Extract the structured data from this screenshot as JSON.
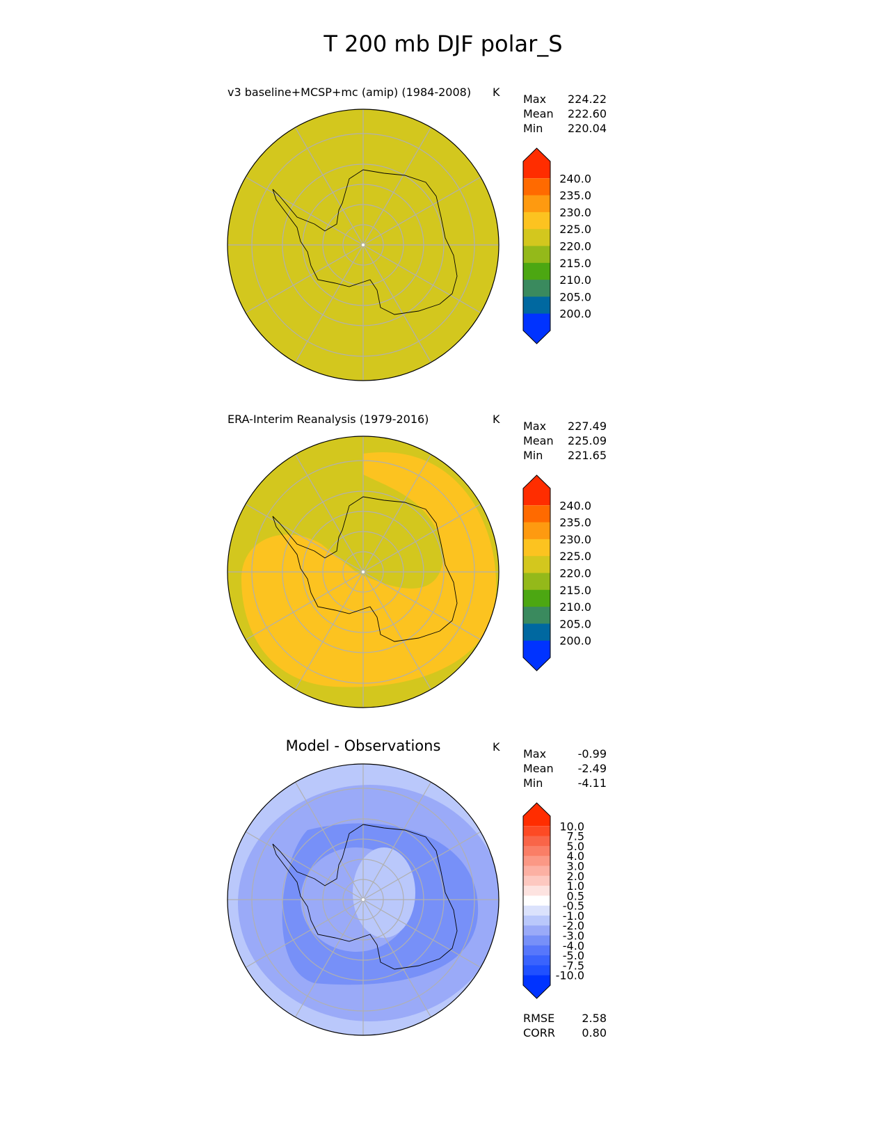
{
  "title": "T 200 mb DJF polar_S",
  "colors": {
    "grid": "#b0b0b0",
    "coast": "#000000"
  },
  "chart_data": [
    {
      "type": "heatmap",
      "projection": "south-polar-stereographic",
      "title": "v3 baseline+MCSP+mc (amip) (1984-2008)",
      "units": "K",
      "stats": [
        {
          "label": "Max",
          "value": "224.22"
        },
        {
          "label": "Mean",
          "value": "222.60"
        },
        {
          "label": "Min",
          "value": "220.04"
        }
      ],
      "colorbar": {
        "levels": [
          "200.0",
          "205.0",
          "210.0",
          "215.0",
          "220.0",
          "225.0",
          "230.0",
          "235.0",
          "240.0"
        ],
        "colors": [
          "#0033ff",
          "#0068a0",
          "#3a8a5e",
          "#4ca712",
          "#94b91a",
          "#d3c71e",
          "#fcc320",
          "#fe9a10",
          "#ff6a00",
          "#ff2d00"
        ]
      },
      "field": {
        "background": "#d3c71e",
        "regions": []
      }
    },
    {
      "type": "heatmap",
      "projection": "south-polar-stereographic",
      "title": "ERA-Interim Reanalysis (1979-2016)",
      "units": "K",
      "stats": [
        {
          "label": "Max",
          "value": "227.49"
        },
        {
          "label": "Mean",
          "value": "225.09"
        },
        {
          "label": "Min",
          "value": "221.65"
        }
      ],
      "colorbar": {
        "levels": [
          "200.0",
          "205.0",
          "210.0",
          "215.0",
          "220.0",
          "225.0",
          "230.0",
          "235.0",
          "240.0"
        ],
        "colors": [
          "#0033ff",
          "#0068a0",
          "#3a8a5e",
          "#4ca712",
          "#94b91a",
          "#d3c71e",
          "#fcc320",
          "#fe9a10",
          "#ff6a00",
          "#ff2d00"
        ]
      },
      "field": {
        "background": "#d3c71e",
        "regions": [
          "225-230 ring surrounding continent"
        ]
      }
    },
    {
      "type": "heatmap",
      "projection": "south-polar-stereographic",
      "title": "Model - Observations",
      "units": "K",
      "stats": [
        {
          "label": "Max",
          "value": "-0.99"
        },
        {
          "label": "Mean",
          "value": "-2.49"
        },
        {
          "label": "Min",
          "value": "-4.11"
        }
      ],
      "metrics": [
        {
          "label": "RMSE",
          "value": "2.58"
        },
        {
          "label": "CORR",
          "value": "0.80"
        }
      ],
      "colorbar": {
        "levels": [
          "-10.0",
          "-7.5",
          "-5.0",
          "-4.0",
          "-3.0",
          "-2.0",
          "-1.0",
          "-0.5",
          "0.5",
          "1.0",
          "2.0",
          "3.0",
          "4.0",
          "5.0",
          "7.5",
          "10.0"
        ],
        "colors": [
          "#0033ff",
          "#2050ff",
          "#3a63fd",
          "#5777fb",
          "#7790f8",
          "#9aaaf8",
          "#bac8fb",
          "#dbe2fc",
          "#ffffff",
          "#fde3e0",
          "#fdc8c0",
          "#fcb0a3",
          "#fb9885",
          "#fa7e66",
          "#f96548",
          "#fd4a24",
          "#ff2d00"
        ]
      },
      "field": {
        "background": "#bac8fb",
        "regions": [
          "-2 to -3 broad band",
          "-3 to -4 ring",
          "-1 to -2 centre"
        ]
      }
    }
  ]
}
